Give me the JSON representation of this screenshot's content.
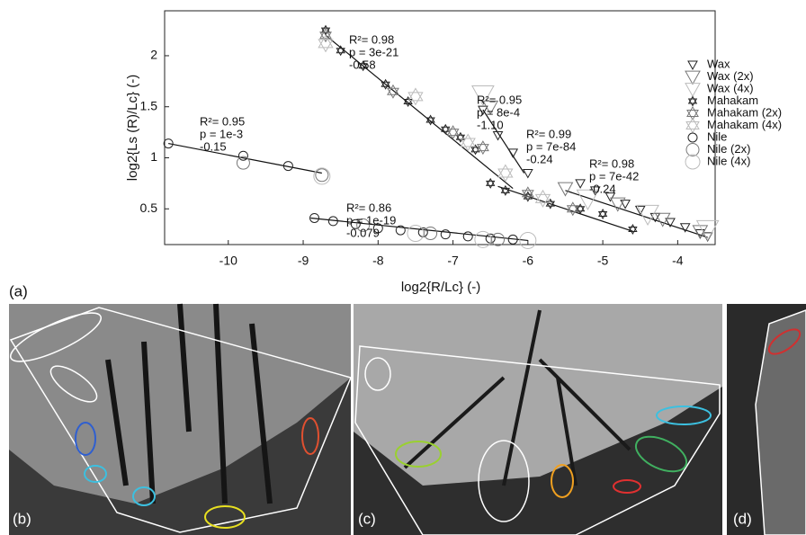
{
  "chart_data": {
    "type": "scatter",
    "x_label": "log2{R/Lc} (-)",
    "y_label": "log2{Ls (R)/Lc} (-)",
    "xlim": [
      -10.85,
      -3.5
    ],
    "ylim": [
      0.15,
      2.44
    ],
    "xticks": [
      -10,
      -9,
      -8,
      -7,
      -6,
      -5,
      -4
    ],
    "yticks": [
      0.5,
      1,
      1.5,
      2
    ],
    "series": [
      {
        "name": "Wax",
        "color": "#222222",
        "marker": "triangle",
        "size": 5,
        "x": [
          -6.6,
          -6.4,
          -6.2,
          -6.0,
          -5.3,
          -5.1,
          -4.9,
          -4.7,
          -4.5,
          -4.3,
          -4.1,
          -3.9,
          -3.7,
          -3.6
        ],
        "y": [
          1.47,
          1.22,
          1.05,
          0.85,
          0.75,
          0.68,
          0.62,
          0.55,
          0.49,
          0.42,
          0.37,
          0.32,
          0.26,
          0.23
        ]
      },
      {
        "name": "Wax (2x)",
        "color": "#777777",
        "marker": "triangle",
        "size": 8,
        "x": [
          -6.5,
          -5.5,
          -4.8,
          -4.2,
          -3.7
        ],
        "y": [
          1.5,
          0.7,
          0.55,
          0.4,
          0.28
        ]
      },
      {
        "name": "Wax (4x)",
        "color": "#bbbbbb",
        "marker": "triangle",
        "size": 12,
        "x": [
          -6.6,
          -5.2,
          -4.4,
          -3.6
        ],
        "y": [
          1.62,
          0.6,
          0.45,
          0.3
        ]
      },
      {
        "name": "Mahakam",
        "color": "#222222",
        "marker": "hexagram",
        "size": 5,
        "x": [
          -8.7,
          -8.5,
          -8.2,
          -7.9,
          -7.6,
          -7.3,
          -7.1,
          -6.9,
          -6.7,
          -6.5,
          -6.3,
          -6.0,
          -5.7,
          -5.3,
          -5.0,
          -4.6
        ],
        "y": [
          2.25,
          2.05,
          1.9,
          1.72,
          1.55,
          1.37,
          1.28,
          1.2,
          1.08,
          0.75,
          0.68,
          0.62,
          0.55,
          0.5,
          0.45,
          0.3
        ]
      },
      {
        "name": "Mahakam (2x)",
        "color": "#777777",
        "marker": "hexagram",
        "size": 7,
        "x": [
          -8.7,
          -7.8,
          -7.0,
          -6.6,
          -6.0,
          -5.4
        ],
        "y": [
          2.2,
          1.65,
          1.25,
          1.1,
          0.65,
          0.5
        ]
      },
      {
        "name": "Mahakam (4x)",
        "color": "#bbbbbb",
        "marker": "hexagram",
        "size": 9,
        "x": [
          -8.7,
          -7.5,
          -6.8,
          -6.3,
          -5.8
        ],
        "y": [
          2.12,
          1.6,
          1.15,
          0.85,
          0.6
        ]
      },
      {
        "name": "Nile",
        "color": "#222222",
        "marker": "circle",
        "size": 5,
        "x": [
          -10.8,
          -9.8,
          -9.2,
          -8.85,
          -8.6,
          -8.3,
          -8.0,
          -7.7,
          -7.4,
          -7.1,
          -6.8,
          -6.5,
          -6.2
        ],
        "y": [
          1.14,
          1.02,
          0.92,
          0.41,
          0.38,
          0.35,
          0.31,
          0.29,
          0.27,
          0.25,
          0.23,
          0.21,
          0.2
        ]
      },
      {
        "name": "Nile (2x)",
        "color": "#777777",
        "marker": "circle",
        "size": 7,
        "x": [
          -9.8,
          -8.75,
          -8.2,
          -7.3,
          -6.4
        ],
        "y": [
          0.95,
          0.83,
          0.34,
          0.26,
          0.2
        ]
      },
      {
        "name": "Nile (4x)",
        "color": "#bbbbbb",
        "marker": "circle",
        "size": 9,
        "x": [
          -8.75,
          -7.5,
          -6.6,
          -6.0
        ],
        "y": [
          0.82,
          0.26,
          0.2,
          0.19
        ]
      }
    ],
    "fits": [
      {
        "x": [
          -10.8,
          -8.75
        ],
        "y": [
          1.14,
          0.85
        ]
      },
      {
        "x": [
          -8.9,
          -6.0
        ],
        "y": [
          0.41,
          0.19
        ]
      },
      {
        "x": [
          -8.7,
          -6.2
        ],
        "y": [
          2.2,
          0.7
        ]
      },
      {
        "x": [
          -6.6,
          -6.05
        ],
        "y": [
          1.47,
          0.85
        ]
      },
      {
        "x": [
          -6.4,
          -4.6
        ],
        "y": [
          0.72,
          0.28
        ]
      },
      {
        "x": [
          -5.5,
          -3.6
        ],
        "y": [
          0.68,
          0.22
        ]
      }
    ],
    "annotations": [
      [
        "R²= 0.98",
        "p = 3e-21",
        "-0.58"
      ],
      [
        "R²= 0.95",
        "p = 8e-4",
        "-1.10"
      ],
      [
        "R²= 0.99",
        "p = 7e-84",
        "-0.24"
      ],
      [
        "R²= 0.98",
        "p = 7e-42",
        "-0.24"
      ],
      [
        "R²= 0.95",
        "p = 1e-3",
        "-0.15"
      ],
      [
        "R²= 0.86",
        "p = 1e-19",
        "-0.079"
      ]
    ]
  },
  "panel_labels": [
    "(a)",
    "(b)",
    "(c)",
    "(d)"
  ]
}
